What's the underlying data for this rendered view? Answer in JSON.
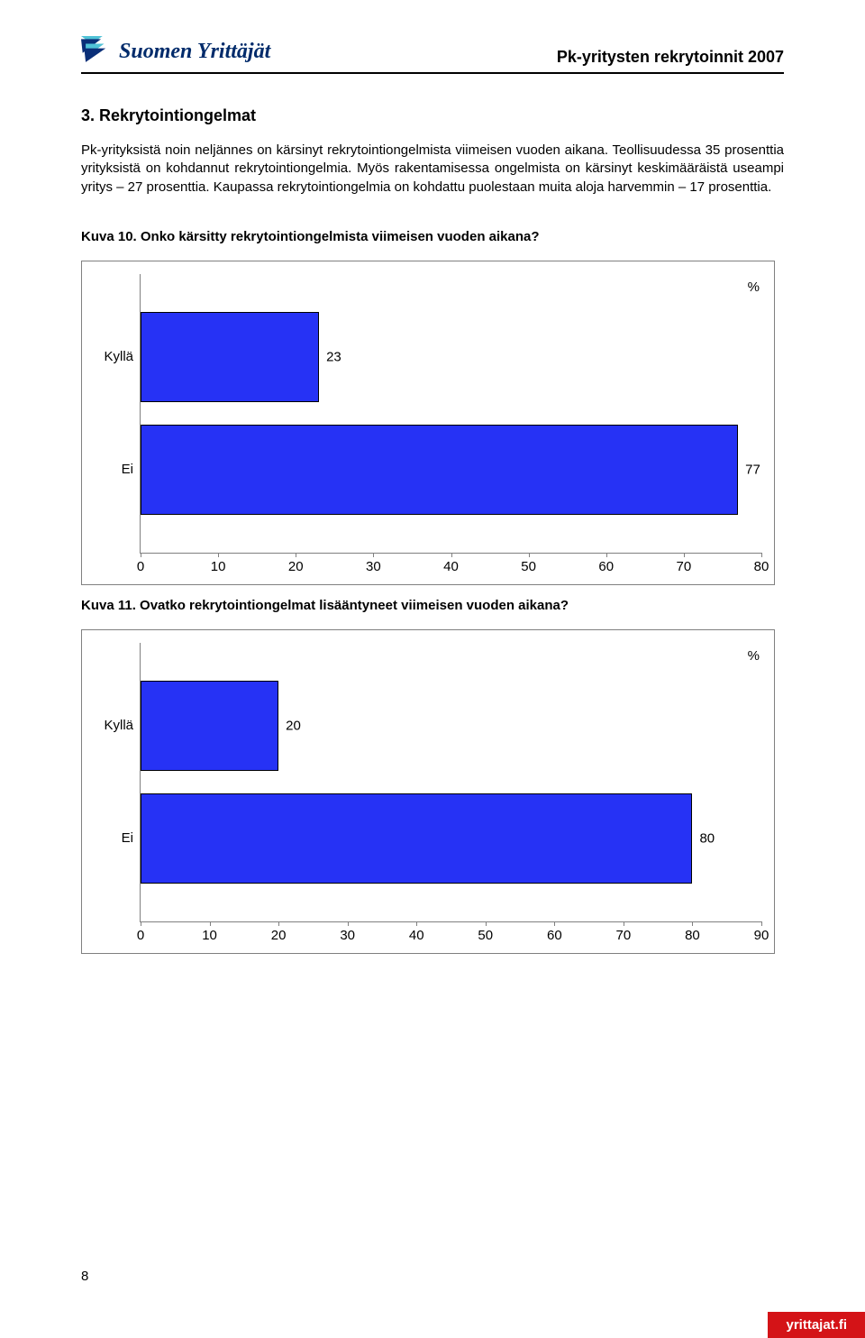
{
  "header": {
    "logo_text": "Suomen Yrittäjät",
    "doc_title": "Pk-yritysten rekrytoinnit 2007"
  },
  "section": {
    "heading": "3. Rekrytointiongelmat",
    "body": "Pk-yrityksistä noin neljännes on kärsinyt rekrytointiongelmista viimeisen vuoden aikana. Teollisuudessa 35 prosenttia yrityksistä on kohdannut rekrytointiongelmia. Myös rakentamisessa ongelmista on kärsinyt keskimääräistä useampi yritys – 27 prosenttia. Kaupassa rekrytointiongelmia on kohdattu puolestaan muita aloja harvemmin – 17 prosenttia."
  },
  "chart10": {
    "caption": "Kuva 10. Onko kärsitty rekrytointiongelmista viimeisen vuoden aikana?",
    "pct_symbol": "%",
    "bar_color": "#2632f5",
    "bar_border": "#000000",
    "x_min": 0,
    "x_max": 80,
    "x_step": 10,
    "x_ticks": [
      "0",
      "10",
      "20",
      "30",
      "40",
      "50",
      "60",
      "70",
      "80"
    ],
    "categories": [
      {
        "label": "Kyllä",
        "value": 23
      },
      {
        "label": "Ei",
        "value": 77
      }
    ]
  },
  "chart11": {
    "caption": "Kuva 11. Ovatko rekrytointiongelmat lisääntyneet viimeisen vuoden aikana?",
    "pct_symbol": "%",
    "bar_color": "#2632f5",
    "bar_border": "#000000",
    "x_min": 0,
    "x_max": 90,
    "x_step": 10,
    "x_ticks": [
      "0",
      "10",
      "20",
      "30",
      "40",
      "50",
      "60",
      "70",
      "80",
      "90"
    ],
    "categories": [
      {
        "label": "Kyllä",
        "value": 20
      },
      {
        "label": "Ei",
        "value": 80
      }
    ]
  },
  "footer": {
    "page_number": "8",
    "site": "yrittajat.fi"
  }
}
